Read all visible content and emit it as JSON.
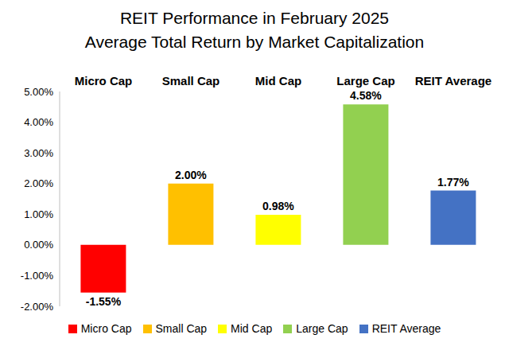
{
  "chart_data": {
    "type": "bar",
    "title": "REIT Performance in February 2025",
    "subtitle": "Average Total Return by Market Capitalization",
    "categories": [
      "Micro Cap",
      "Small Cap",
      "Mid Cap",
      "Large Cap",
      "REIT Average"
    ],
    "values": [
      -1.55,
      2.0,
      0.98,
      4.58,
      1.77
    ],
    "value_labels": [
      "-1.55%",
      "2.00%",
      "0.98%",
      "4.58%",
      "1.77%"
    ],
    "colors": [
      "#ff0000",
      "#ffc000",
      "#ffff00",
      "#92d050",
      "#4472c4"
    ],
    "ylim": [
      -2,
      5
    ],
    "yticks": [
      {
        "value": -2,
        "label": "-2.00%"
      },
      {
        "value": -1,
        "label": "-1.00%"
      },
      {
        "value": 0,
        "label": "0.00%"
      },
      {
        "value": 1,
        "label": "1.00%"
      },
      {
        "value": 2,
        "label": "2.00%"
      },
      {
        "value": 3,
        "label": "3.00%"
      },
      {
        "value": 4,
        "label": "4.00%"
      },
      {
        "value": 5,
        "label": "5.00%"
      }
    ],
    "grid": false,
    "data_labels": true,
    "legend": "bottom"
  }
}
